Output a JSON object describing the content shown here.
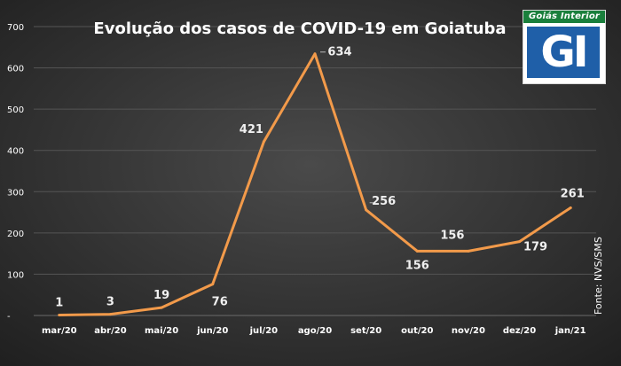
{
  "chart_data": {
    "type": "line",
    "title": "Evolução dos casos de COVID-19 em Goiatuba",
    "xlabel": "",
    "ylabel": "",
    "categories": [
      "mar/20",
      "abr/20",
      "mai/20",
      "jun/20",
      "jul/20",
      "ago/20",
      "set/20",
      "out/20",
      "nov/20",
      "dez/20",
      "jan/21"
    ],
    "values": [
      1,
      3,
      19,
      76,
      421,
      634,
      256,
      156,
      156,
      179,
      261
    ],
    "data_labels": [
      "1",
      "3",
      "19",
      "76",
      "421",
      "634",
      "256",
      "156",
      "156",
      "179",
      "261"
    ],
    "y_ticks": [
      0,
      100,
      200,
      300,
      400,
      500,
      600,
      700
    ],
    "y_tick_labels": [
      "-",
      "100",
      "200",
      "300",
      "400",
      "500",
      "600",
      "700"
    ],
    "ylim": [
      0,
      700
    ],
    "grid": true,
    "legend": "none",
    "line_color": "#f29a4a",
    "grid_color": "#555555",
    "text_color": "#ffffff"
  },
  "logo": {
    "banner": "Goiás Interior",
    "mark": "GI",
    "banner_color": "#1a7f3c",
    "box_color": "#1f5fa8"
  },
  "source": "Fonte: NVS/SMS"
}
